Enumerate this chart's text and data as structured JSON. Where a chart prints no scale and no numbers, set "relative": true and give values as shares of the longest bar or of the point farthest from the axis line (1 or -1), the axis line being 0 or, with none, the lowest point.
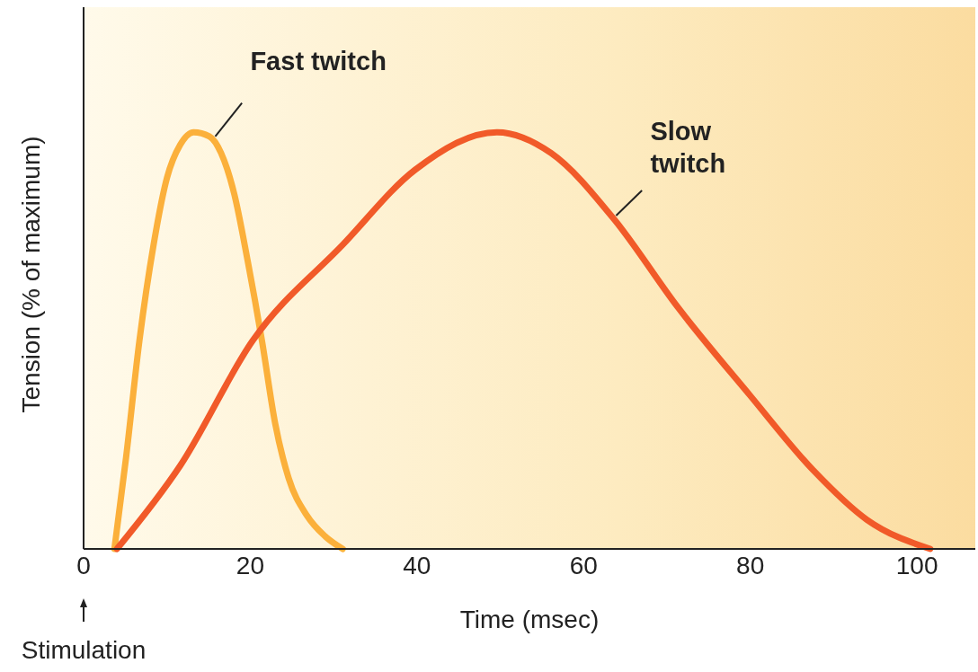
{
  "chart_data": {
    "type": "line",
    "relative": true,
    "xlabel": "Time (msec)",
    "ylabel": "Tension (% of maximum)",
    "xlim": [
      0,
      107
    ],
    "xticks": [
      0,
      20,
      40,
      60,
      80,
      100
    ],
    "grid": false,
    "legend": false,
    "marker": "none",
    "line_style": "solid",
    "series": [
      {
        "name": "Fast twitch",
        "color": "#fbb03b",
        "x": [
          3.7,
          5.1,
          6.7,
          8.4,
          10,
          11.6,
          13.2,
          15.1,
          16.5,
          18.1,
          19.7,
          21.4,
          23,
          24.6,
          26.8,
          29,
          31.1
        ],
        "values": [
          0,
          0.22,
          0.5,
          0.73,
          0.89,
          0.97,
          1.0,
          0.99,
          0.95,
          0.85,
          0.69,
          0.5,
          0.3,
          0.17,
          0.08,
          0.03,
          0
        ]
      },
      {
        "name": "Slow twitch",
        "color": "#f15a29",
        "x": [
          4,
          11.6,
          20.3,
          31.1,
          39.8,
          49.6,
          56.1,
          63.7,
          71.3,
          79.9,
          87.5,
          94,
          101.6
        ],
        "values": [
          0,
          0.2,
          0.5,
          0.73,
          0.91,
          1.0,
          0.95,
          0.79,
          0.58,
          0.37,
          0.19,
          0.07,
          0
        ]
      }
    ],
    "annotations": [
      "Stimulation"
    ]
  }
}
